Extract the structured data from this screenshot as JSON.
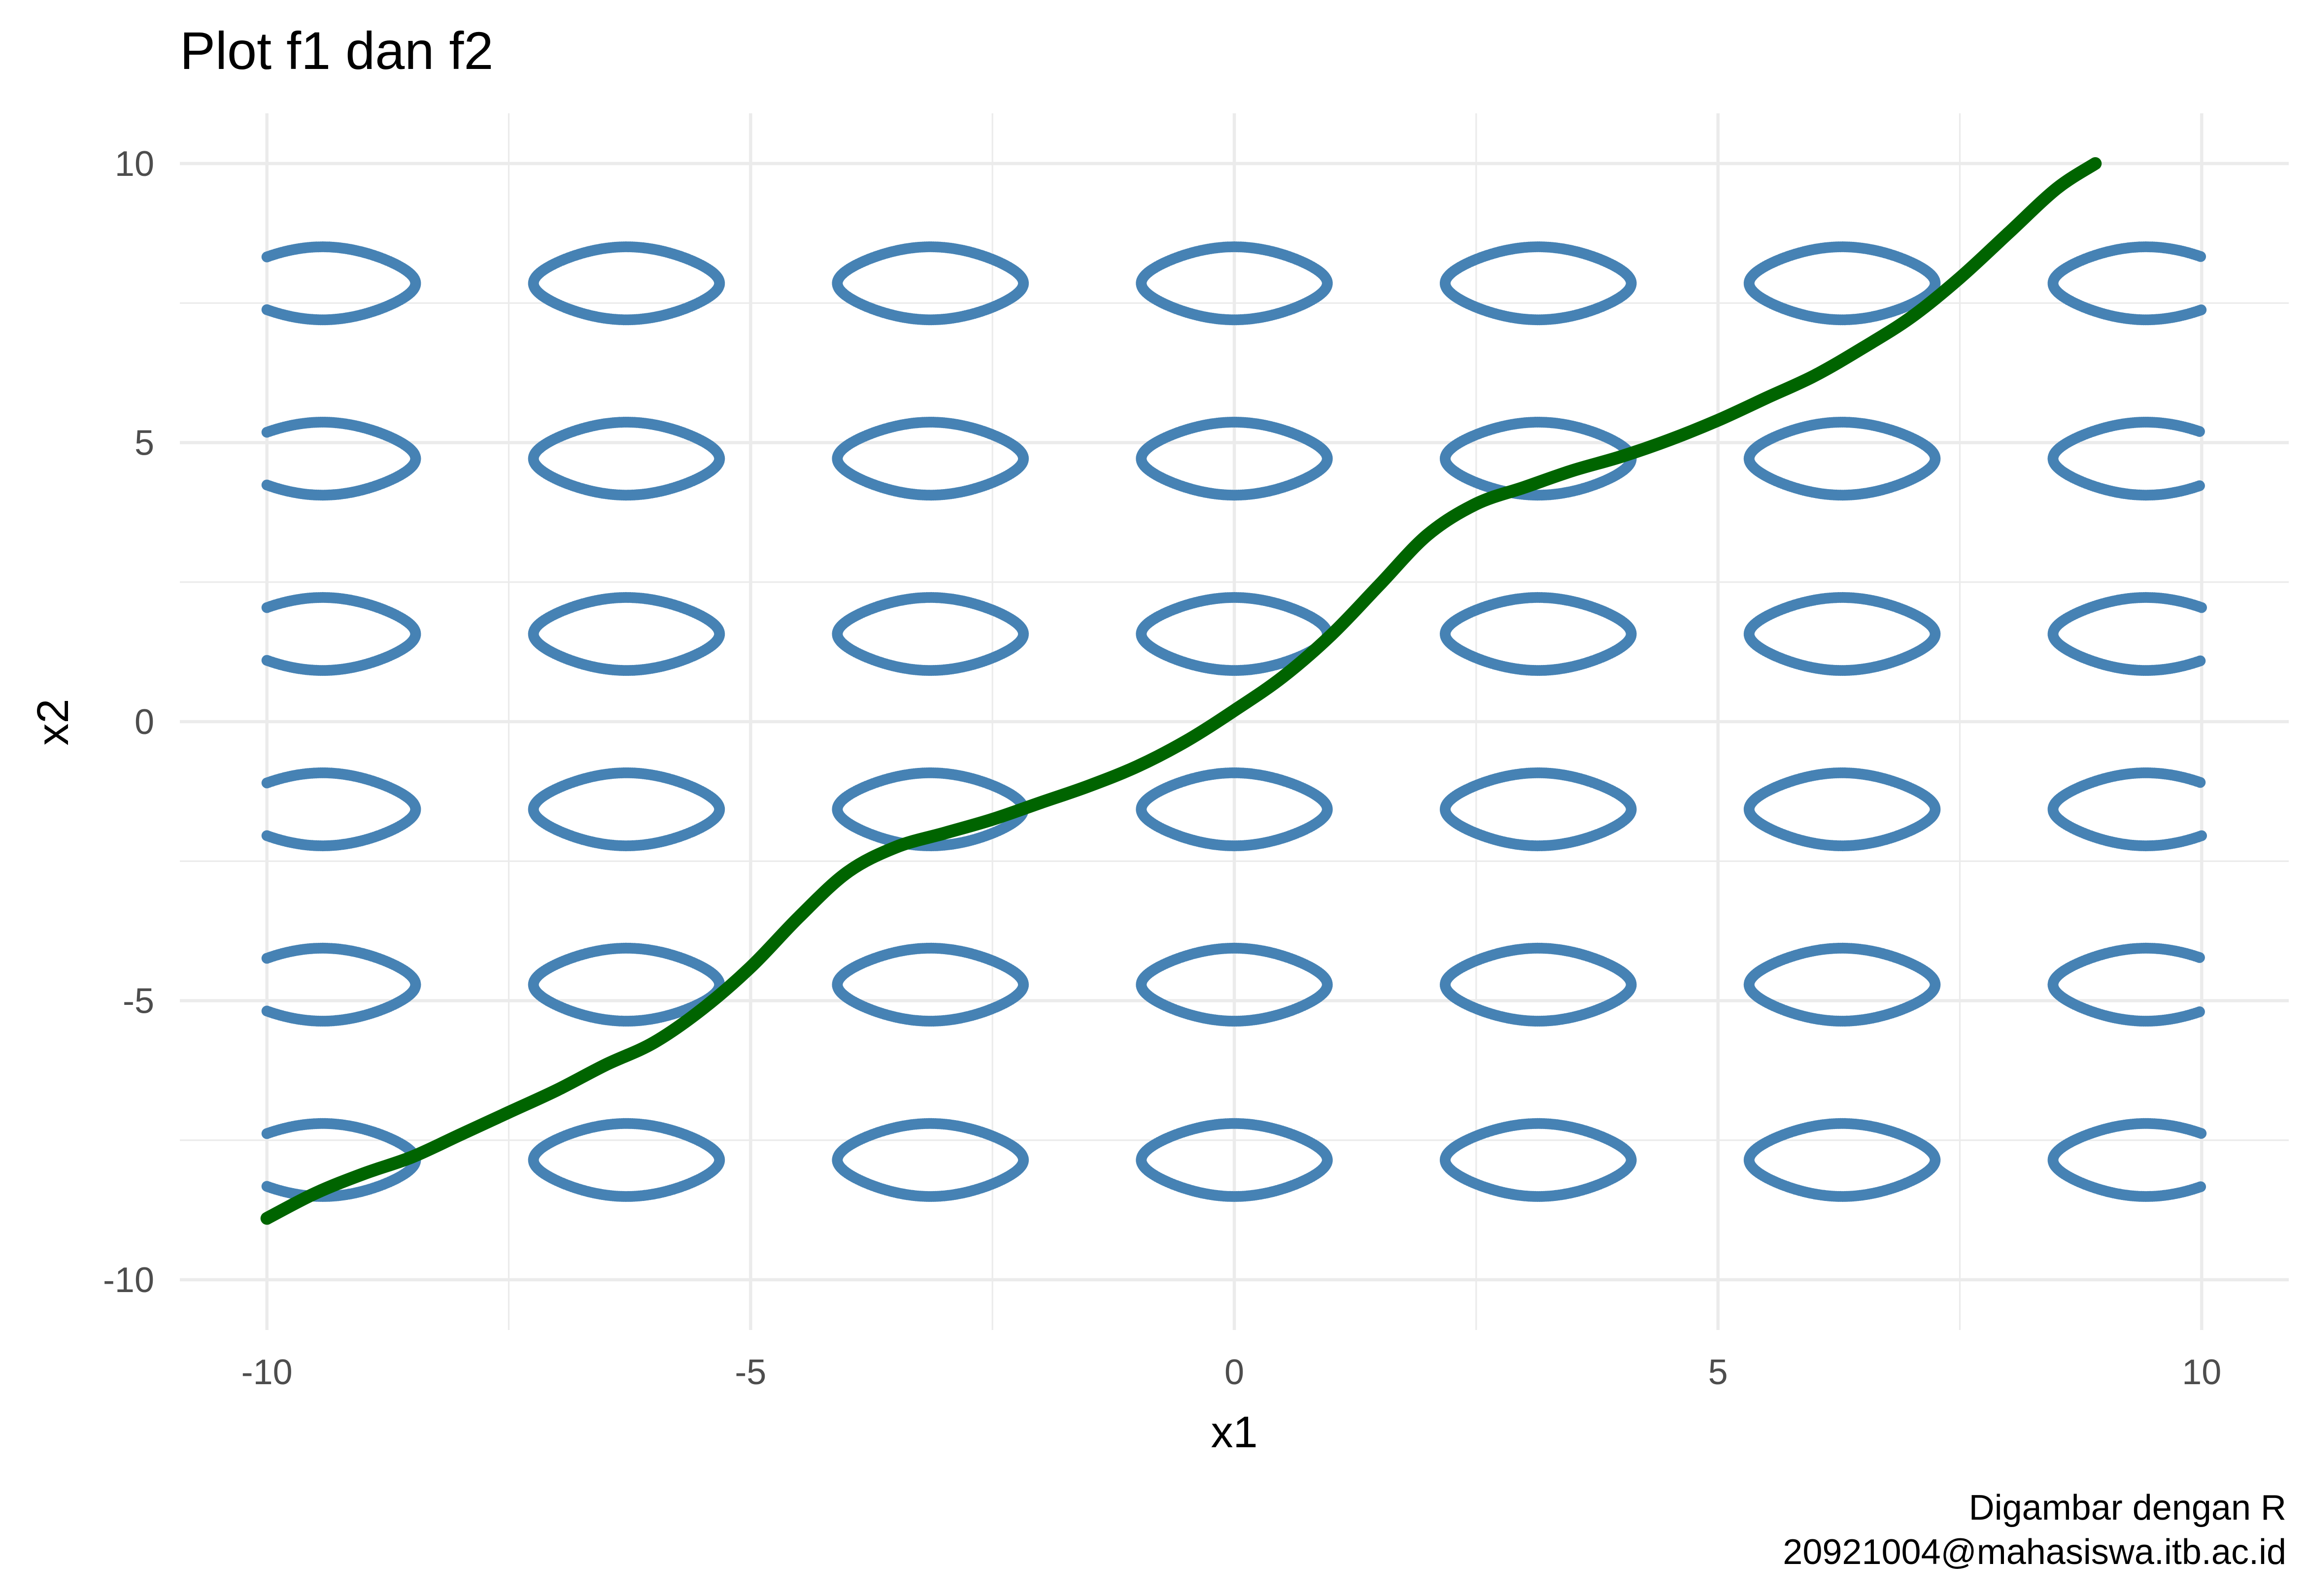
{
  "chart_data": {
    "type": "scatter",
    "title": "Plot f1 dan f2",
    "xlabel": "x1",
    "ylabel": "x2",
    "xlim": [
      -10.9,
      10.9
    ],
    "ylim": [
      -10.9,
      10.9
    ],
    "x_ticks": [
      -10,
      -5,
      0,
      5,
      10
    ],
    "y_ticks": [
      -10,
      -5,
      0,
      5,
      10
    ],
    "x_tick_labels": [
      "-10",
      "-5",
      "0",
      "5",
      "10"
    ],
    "y_tick_labels": [
      "-10",
      "-5",
      "0",
      "5",
      "10"
    ],
    "grid": true,
    "legend": "none",
    "caption": [
      "Digambar dengan R",
      "20921004@mahasiswa.itb.ac.id"
    ],
    "colors": {
      "f1": "#4682b4",
      "f2": "#006400",
      "grid": "#ebebeb"
    },
    "series": [
      {
        "kind": "contour-points",
        "color": "#4682b4",
        "x_range": [
          -10,
          10
        ],
        "y_range": [
          -10,
          10
        ],
        "note_pattern_centers_x": [
          -9.42,
          -6.28,
          -3.14,
          0,
          3.14,
          6.28,
          9.42
        ],
        "note_pattern_centers_y": [
          -7.85,
          -4.71,
          -1.57,
          1.57,
          4.71,
          7.85
        ]
      },
      {
        "kind": "curve",
        "color": "#006400",
        "x": [
          -10,
          -9.5,
          -9,
          -8.5,
          -8,
          -7.5,
          -7,
          -6.5,
          -6,
          -5.5,
          -5,
          -4.5,
          -4,
          -3.5,
          -3,
          -2.5,
          -2,
          -1.5,
          -1,
          -0.5,
          0,
          0.5,
          1,
          1.5,
          2,
          2.5,
          3,
          3.5,
          4,
          4.5,
          5,
          5.5,
          6,
          6.5,
          7,
          7.5,
          8,
          8.5,
          8.9
        ],
        "y": [
          -8.9,
          -8.45,
          -8.1,
          -7.8,
          -7.4,
          -7.0,
          -6.6,
          -6.15,
          -5.75,
          -5.15,
          -4.4,
          -3.5,
          -2.7,
          -2.25,
          -2.0,
          -1.75,
          -1.45,
          -1.15,
          -0.8,
          -0.35,
          0.2,
          0.8,
          1.55,
          2.45,
          3.35,
          3.9,
          4.2,
          4.5,
          4.75,
          5.05,
          5.4,
          5.8,
          6.2,
          6.7,
          7.25,
          7.95,
          8.75,
          9.55,
          10.0
        ]
      }
    ]
  }
}
